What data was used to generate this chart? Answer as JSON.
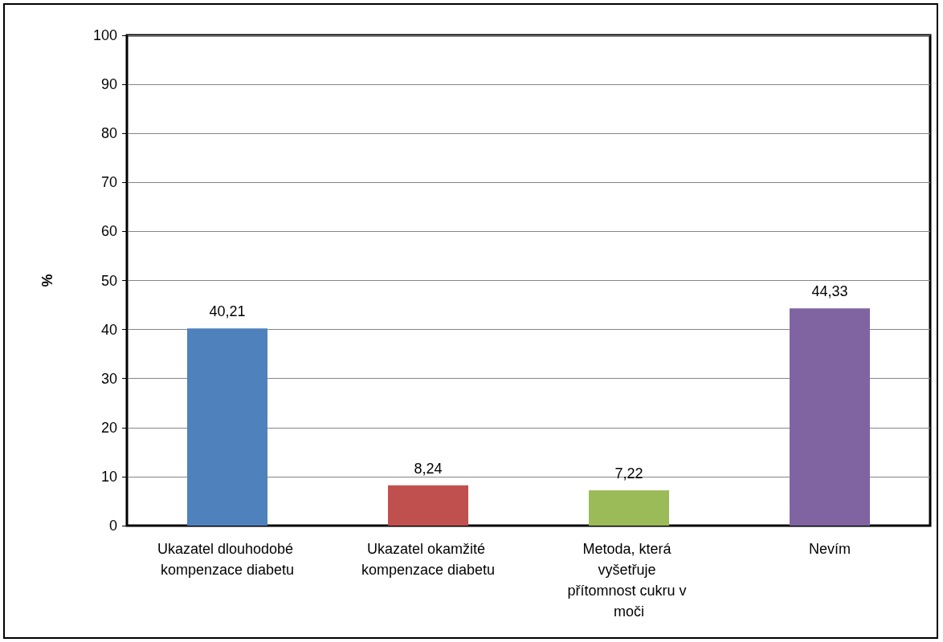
{
  "chart_data": {
    "type": "bar",
    "ylabel": "%",
    "categories": [
      "Ukazatel dlouhodobé kompenzace diabetu",
      "Ukazatel okamžité kompenzace diabetu",
      "Metoda, která vyšetřuje přítomnost cukru v moči",
      "Nevím"
    ],
    "values": [
      40.21,
      8.24,
      7.22,
      44.33
    ],
    "value_labels": [
      "40,21",
      "8,24",
      "7,22",
      "44,33"
    ],
    "colors": [
      "#4f81bd",
      "#c0504d",
      "#9bbb59",
      "#8064a2"
    ],
    "ylim": [
      0,
      100
    ],
    "yticks": [
      0,
      10,
      20,
      30,
      40,
      50,
      60,
      70,
      80,
      90,
      100
    ],
    "grid": "y"
  }
}
